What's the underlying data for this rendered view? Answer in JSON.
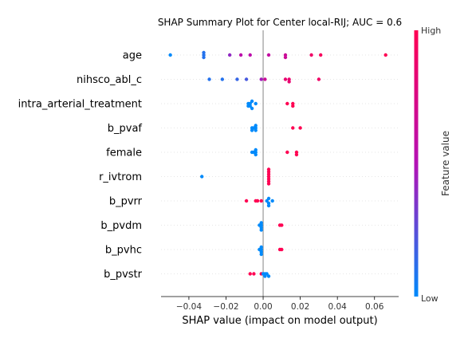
{
  "chart_data": {
    "type": "scatter",
    "title": "SHAP Summary Plot for Center local-RIJ; AUC = 0.6",
    "xlabel": "SHAP value (impact on model output)",
    "xlim": [
      -0.055,
      0.073
    ],
    "xticks": [
      -0.04,
      -0.02,
      0.0,
      0.02,
      0.04,
      0.06
    ],
    "xtick_labels": [
      "−0.04",
      "−0.02",
      "0.00",
      "0.02",
      "0.04",
      "0.06"
    ],
    "features": [
      "age",
      "nihsco_abl_c",
      "intra_arterial_treatment",
      "b_pvaf",
      "female",
      "r_ivtrom",
      "b_pvrr",
      "b_pvdm",
      "b_pvhc",
      "b_pvstr"
    ],
    "colorbar": {
      "label": "Feature value",
      "high_label": "High",
      "low_label": "Low",
      "low_color": "#008afb",
      "high_color": "#ff0052"
    },
    "grid": false,
    "points": {
      "age": [
        {
          "x": -0.05,
          "f": 0.0
        },
        {
          "x": -0.032,
          "f": 0.1
        },
        {
          "x": -0.032,
          "f": 0.1
        },
        {
          "x": -0.032,
          "f": 0.1
        },
        {
          "x": -0.018,
          "f": 0.4
        },
        {
          "x": -0.012,
          "f": 0.55
        },
        {
          "x": -0.007,
          "f": 0.55
        },
        {
          "x": 0.003,
          "f": 0.6
        },
        {
          "x": 0.012,
          "f": 0.65
        },
        {
          "x": 0.012,
          "f": 0.65
        },
        {
          "x": 0.026,
          "f": 0.9
        },
        {
          "x": 0.031,
          "f": 0.95
        },
        {
          "x": 0.066,
          "f": 1.0
        }
      ],
      "nihsco_abl_c": [
        {
          "x": -0.029,
          "f": 0.1
        },
        {
          "x": -0.022,
          "f": 0.1
        },
        {
          "x": -0.014,
          "f": 0.15
        },
        {
          "x": -0.009,
          "f": 0.2
        },
        {
          "x": -0.001,
          "f": 0.45
        },
        {
          "x": 0.001,
          "f": 0.65
        },
        {
          "x": 0.012,
          "f": 0.85
        },
        {
          "x": 0.014,
          "f": 0.85
        },
        {
          "x": 0.014,
          "f": 0.85
        },
        {
          "x": 0.03,
          "f": 0.9
        }
      ],
      "intra_arterial_treatment": [
        {
          "x": -0.007,
          "f": 0.0
        },
        {
          "x": -0.007,
          "f": 0.0
        },
        {
          "x": -0.008,
          "f": 0.0
        },
        {
          "x": -0.006,
          "f": 0.0
        },
        {
          "x": -0.004,
          "f": 0.0
        },
        {
          "x": -0.008,
          "f": 0.0
        },
        {
          "x": -0.006,
          "f": 0.0
        },
        {
          "x": 0.013,
          "f": 1.0
        },
        {
          "x": 0.016,
          "f": 1.0
        },
        {
          "x": 0.016,
          "f": 1.0
        }
      ],
      "b_pvaf": [
        {
          "x": -0.006,
          "f": 0.0
        },
        {
          "x": -0.005,
          "f": 0.0
        },
        {
          "x": -0.004,
          "f": 0.0
        },
        {
          "x": -0.006,
          "f": 0.0
        },
        {
          "x": -0.004,
          "f": 0.0
        },
        {
          "x": -0.004,
          "f": 0.0
        },
        {
          "x": 0.016,
          "f": 1.0
        },
        {
          "x": 0.02,
          "f": 1.0
        }
      ],
      "female": [
        {
          "x": -0.005,
          "f": 0.0
        },
        {
          "x": -0.004,
          "f": 0.0
        },
        {
          "x": -0.006,
          "f": 0.0
        },
        {
          "x": -0.004,
          "f": 0.0
        },
        {
          "x": -0.004,
          "f": 0.0
        },
        {
          "x": 0.013,
          "f": 1.0
        },
        {
          "x": 0.018,
          "f": 1.0
        },
        {
          "x": 0.018,
          "f": 1.0
        }
      ],
      "r_ivtrom": [
        {
          "x": -0.033,
          "f": 0.0
        },
        {
          "x": 0.003,
          "f": 1.0
        },
        {
          "x": 0.003,
          "f": 1.0
        },
        {
          "x": 0.003,
          "f": 1.0
        },
        {
          "x": 0.003,
          "f": 1.0
        },
        {
          "x": 0.003,
          "f": 1.0
        },
        {
          "x": 0.003,
          "f": 1.0
        },
        {
          "x": 0.003,
          "f": 1.0
        }
      ],
      "b_pvrr": [
        {
          "x": -0.009,
          "f": 1.0
        },
        {
          "x": -0.004,
          "f": 1.0
        },
        {
          "x": -0.003,
          "f": 1.0
        },
        {
          "x": -0.001,
          "f": 1.0
        },
        {
          "x": 0.002,
          "f": 0.0
        },
        {
          "x": 0.003,
          "f": 0.0
        },
        {
          "x": 0.003,
          "f": 0.0
        },
        {
          "x": 0.003,
          "f": 0.0
        },
        {
          "x": 0.005,
          "f": 0.0
        }
      ],
      "b_pvdm": [
        {
          "x": -0.001,
          "f": 0.0
        },
        {
          "x": -0.001,
          "f": 0.0
        },
        {
          "x": -0.001,
          "f": 0.0
        },
        {
          "x": -0.002,
          "f": 0.0
        },
        {
          "x": -0.001,
          "f": 0.0
        },
        {
          "x": 0.009,
          "f": 1.0
        },
        {
          "x": 0.01,
          "f": 1.0
        }
      ],
      "b_pvhc": [
        {
          "x": -0.001,
          "f": 0.0
        },
        {
          "x": -0.002,
          "f": 0.0
        },
        {
          "x": -0.001,
          "f": 0.0
        },
        {
          "x": -0.001,
          "f": 0.0
        },
        {
          "x": -0.001,
          "f": 0.0
        },
        {
          "x": 0.009,
          "f": 1.0
        },
        {
          "x": 0.01,
          "f": 1.0
        }
      ],
      "b_pvstr": [
        {
          "x": -0.007,
          "f": 1.0
        },
        {
          "x": -0.005,
          "f": 1.0
        },
        {
          "x": -0.001,
          "f": 1.0
        },
        {
          "x": 0.0,
          "f": 0.0
        },
        {
          "x": 0.001,
          "f": 0.0
        },
        {
          "x": 0.002,
          "f": 0.0
        },
        {
          "x": 0.003,
          "f": 0.0
        },
        {
          "x": 0.001,
          "f": 0.0
        }
      ]
    }
  }
}
